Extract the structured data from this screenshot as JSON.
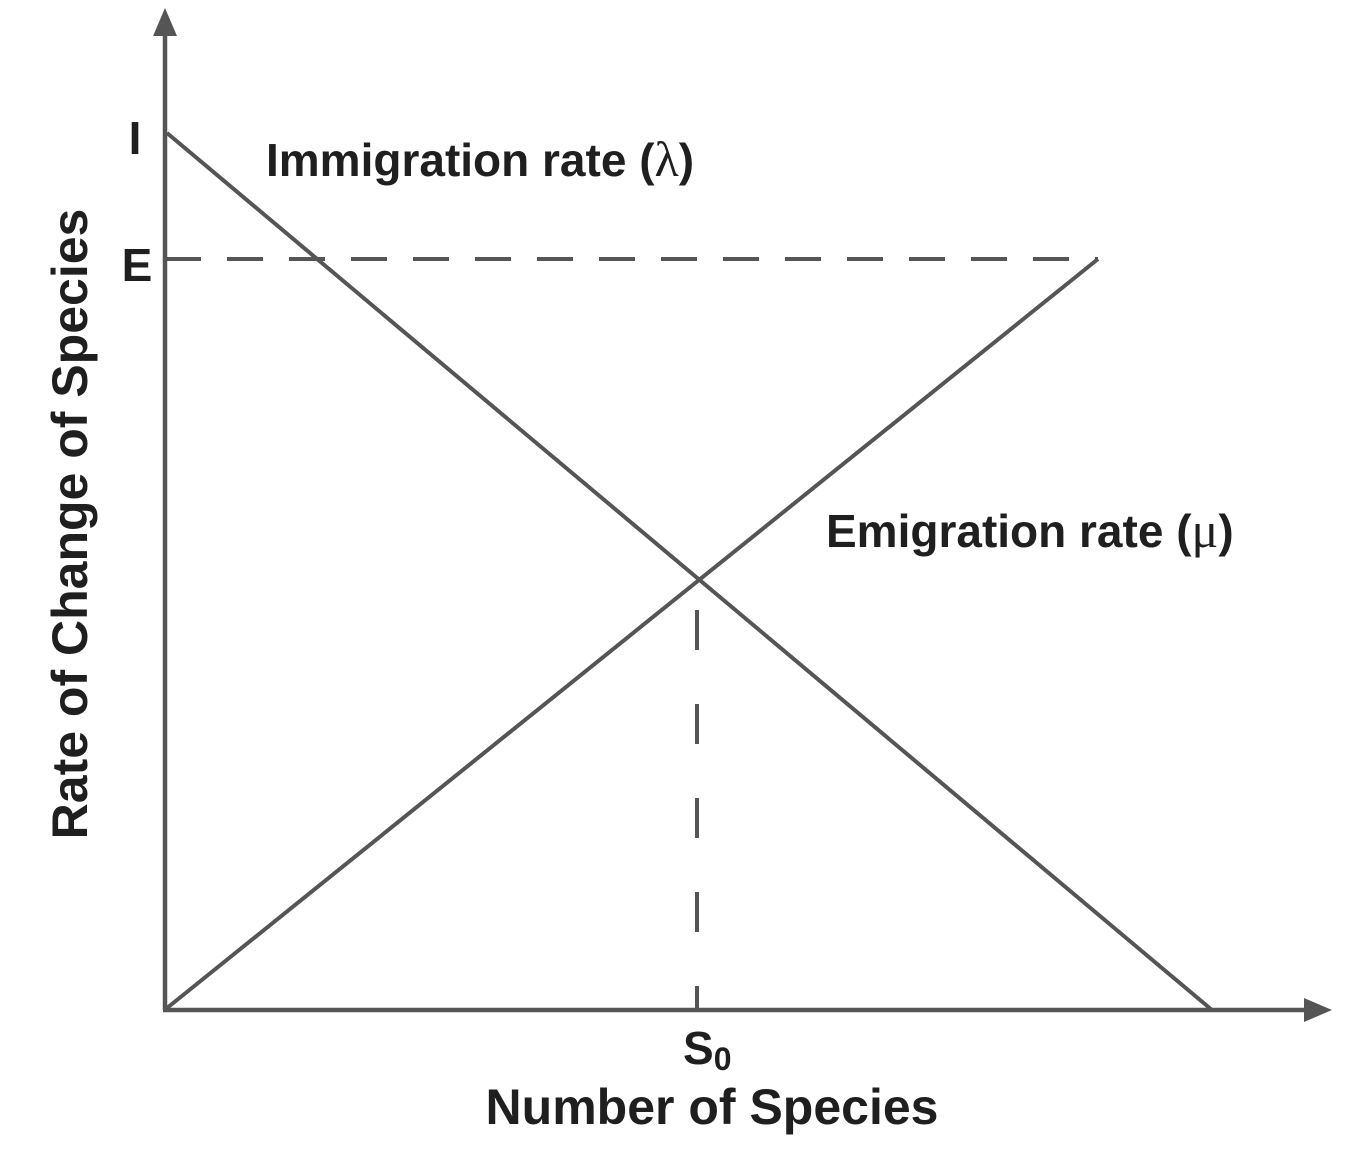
{
  "labels": {
    "y_axis": "Rate of Change of Species",
    "x_axis": "Number of Species",
    "i_tick": "I",
    "e_tick": "E",
    "s0_base": "S",
    "s0_sub": "0",
    "immigration_text": "Immigration rate (",
    "immigration_symbol": "λ",
    "emigration_text": "Emigration rate (",
    "emigration_symbol": "μ",
    "close_paren": ")"
  },
  "colors": {
    "line": "#555555",
    "text": "#1f1f1f"
  }
}
